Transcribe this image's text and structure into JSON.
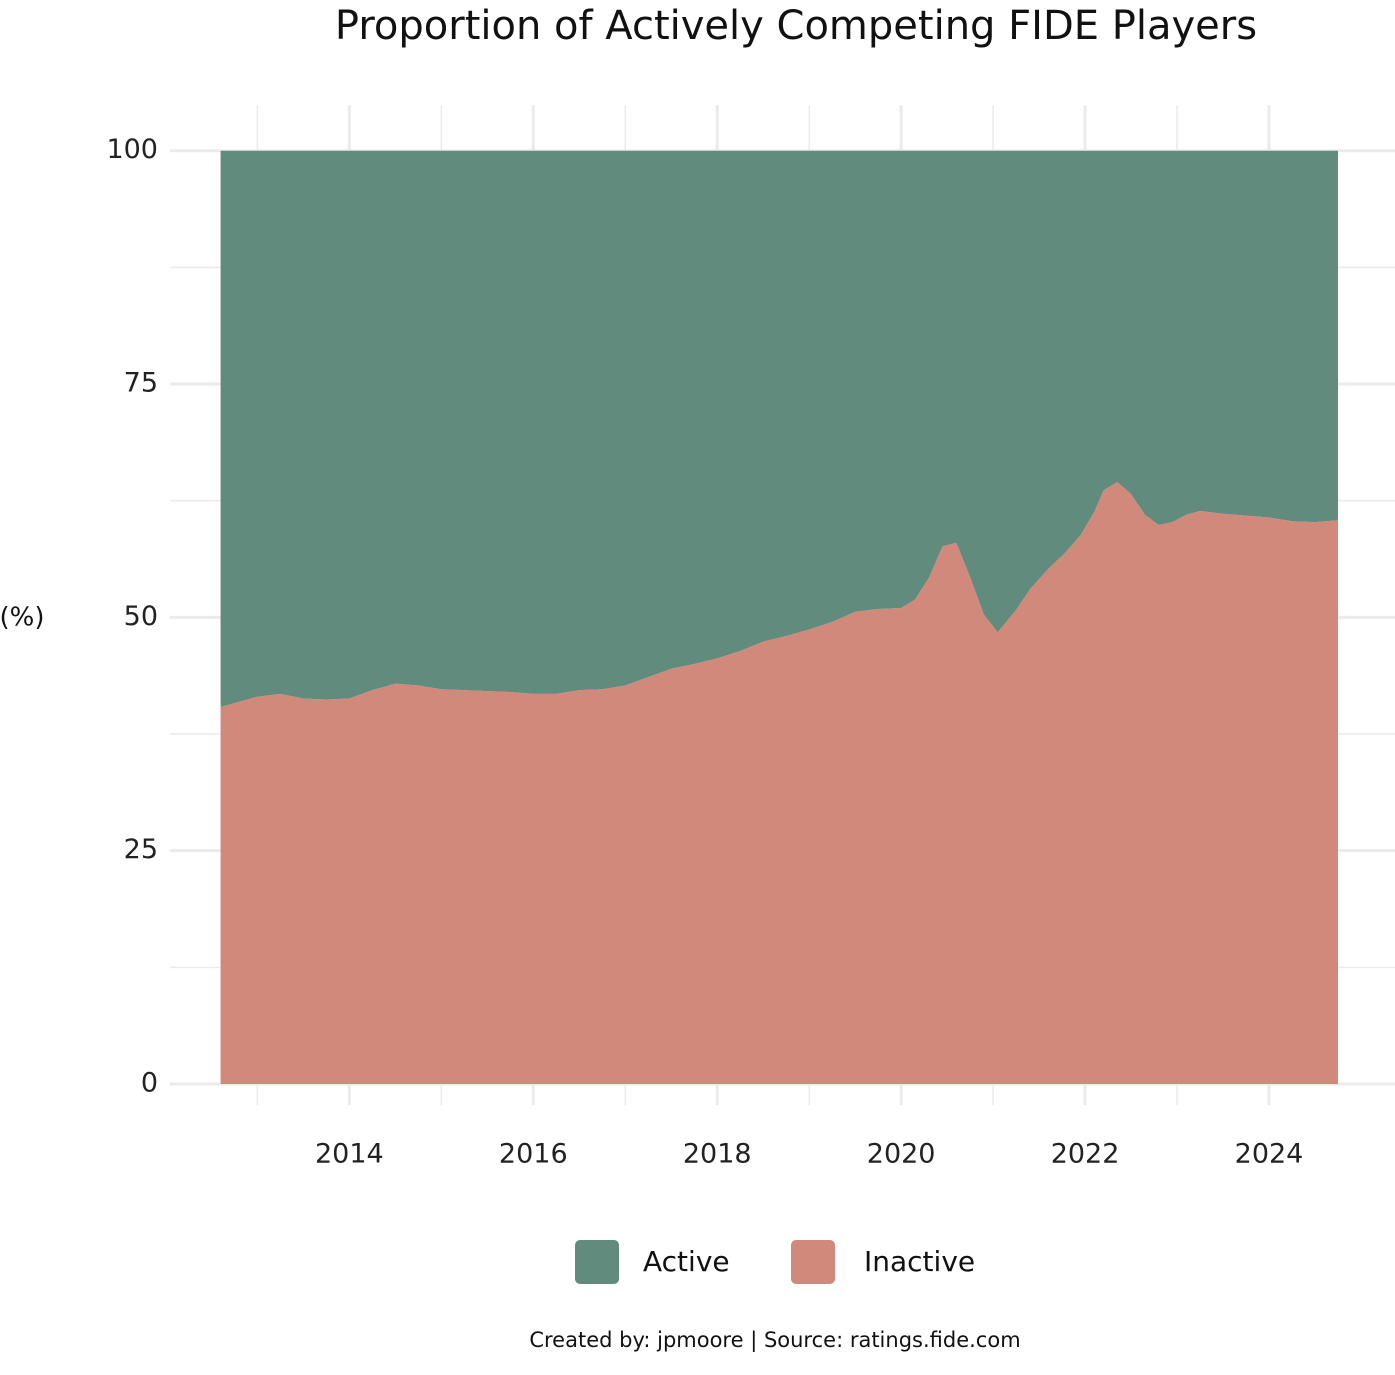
{
  "chart_data": {
    "type": "area",
    "stacked": true,
    "title": "Proportion of Actively Competing FIDE Players",
    "y_label": "(%)",
    "caption": "Created by: jpmoore | Source: ratings.fide.com",
    "x": [
      2012.6,
      2013.0,
      2013.25,
      2013.5,
      2013.75,
      2014.0,
      2014.25,
      2014.5,
      2014.75,
      2015.0,
      2015.25,
      2015.5,
      2015.75,
      2016.0,
      2016.25,
      2016.5,
      2016.75,
      2017.0,
      2017.25,
      2017.5,
      2017.75,
      2018.0,
      2018.25,
      2018.5,
      2018.75,
      2019.0,
      2019.25,
      2019.5,
      2019.75,
      2020.0,
      2020.15,
      2020.3,
      2020.45,
      2020.6,
      2020.75,
      2020.9,
      2021.05,
      2021.25,
      2021.4,
      2021.6,
      2021.8,
      2021.95,
      2022.1,
      2022.2,
      2022.35,
      2022.5,
      2022.65,
      2022.8,
      2022.95,
      2023.1,
      2023.25,
      2023.5,
      2023.75,
      2024.0,
      2024.25,
      2024.5,
      2024.75
    ],
    "series": [
      {
        "name": "Active",
        "color": "#618b7c",
        "values": [
          59.6,
          58.5,
          58.2,
          58.7,
          58.8,
          58.7,
          57.8,
          57.1,
          57.3,
          57.7,
          57.8,
          57.9,
          58.0,
          58.2,
          58.2,
          57.8,
          57.7,
          57.3,
          56.4,
          55.5,
          55.0,
          54.4,
          53.6,
          52.6,
          52.0,
          51.3,
          50.5,
          49.4,
          49.1,
          49.0,
          48.1,
          45.8,
          42.4,
          42.0,
          45.7,
          49.7,
          51.6,
          49.2,
          47.0,
          44.8,
          42.9,
          41.2,
          38.7,
          36.4,
          35.5,
          36.8,
          39.0,
          40.1,
          39.8,
          39.0,
          38.6,
          38.9,
          39.1,
          39.3,
          39.7,
          39.8,
          39.6
        ]
      },
      {
        "name": "Inactive",
        "color": "#d1897c",
        "values": [
          40.4,
          41.5,
          41.8,
          41.3,
          41.2,
          41.3,
          42.2,
          42.9,
          42.7,
          42.3,
          42.2,
          42.1,
          42.0,
          41.8,
          41.8,
          42.2,
          42.3,
          42.7,
          43.6,
          44.5,
          45.0,
          45.6,
          46.4,
          47.4,
          48.0,
          48.7,
          49.5,
          50.6,
          50.9,
          51.0,
          51.9,
          54.2,
          57.6,
          58.0,
          54.3,
          50.3,
          48.4,
          50.8,
          53.0,
          55.2,
          57.1,
          58.8,
          61.3,
          63.6,
          64.5,
          63.2,
          61.0,
          59.9,
          60.2,
          61.0,
          61.4,
          61.1,
          60.9,
          60.7,
          60.3,
          60.2,
          60.4
        ]
      }
    ],
    "xlim": [
      2012.05,
      2025.37
    ],
    "xticks": [
      2014,
      2016,
      2018,
      2020,
      2022,
      2024
    ],
    "ylim": [
      -2.25,
      104.9
    ],
    "yticks": [
      0,
      25,
      50,
      75,
      100
    ],
    "grid": true,
    "legend": "bottom"
  }
}
